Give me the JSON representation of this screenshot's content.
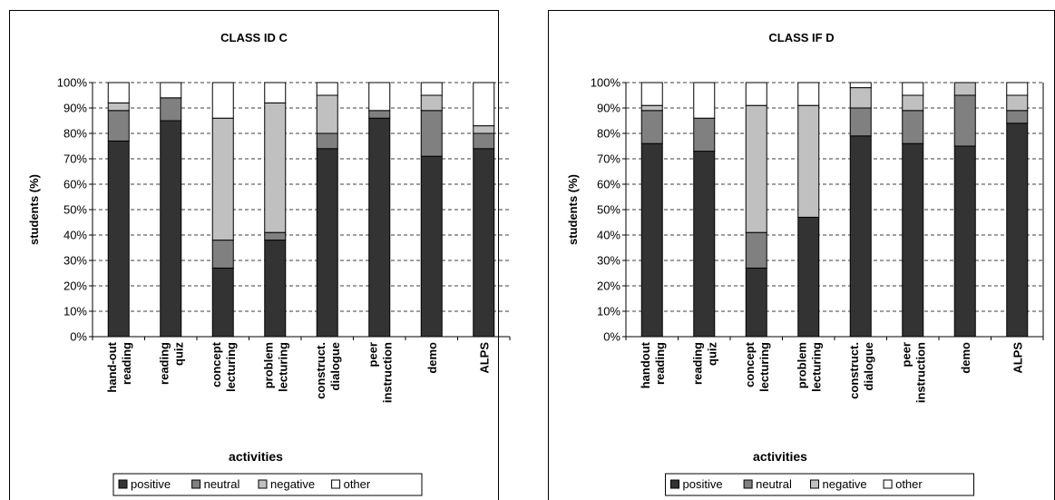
{
  "chart_data": [
    {
      "type": "bar",
      "stacked": true,
      "title": "CLASS ID C",
      "xlabel": "activities",
      "ylabel": "students (%)",
      "ylim": [
        0,
        100
      ],
      "y_ticks": [
        "0%",
        "10%",
        "20%",
        "30%",
        "40%",
        "50%",
        "60%",
        "70%",
        "80%",
        "90%",
        "100%"
      ],
      "grid": "horizontal dashed",
      "legend_position": "bottom",
      "categories": [
        [
          "hand-out",
          "reading"
        ],
        [
          "reading",
          "quiz"
        ],
        [
          "concept",
          "lecturing"
        ],
        [
          "problem",
          "lecturing"
        ],
        [
          "construct.",
          "dialogue"
        ],
        [
          "peer",
          "instruction"
        ],
        [
          "demo"
        ],
        [
          "ALPS"
        ]
      ],
      "series": [
        {
          "name": "positive",
          "color": "#333333",
          "values": [
            77,
            85,
            27,
            38,
            74,
            86,
            71,
            74
          ]
        },
        {
          "name": "neutral",
          "color": "#808080",
          "values": [
            12,
            9,
            11,
            3,
            6,
            3,
            18,
            6
          ]
        },
        {
          "name": "negative",
          "color": "#c0c0c0",
          "values": [
            3,
            0,
            48,
            51,
            15,
            0,
            6,
            3
          ]
        },
        {
          "name": "other",
          "color": "#ffffff",
          "values": [
            8,
            6,
            14,
            8,
            5,
            11,
            5,
            17
          ]
        }
      ]
    },
    {
      "type": "bar",
      "stacked": true,
      "title": "CLASS IF D",
      "xlabel": "activities",
      "ylabel": "students (%)",
      "ylim": [
        0,
        100
      ],
      "y_ticks": [
        "0%",
        "10%",
        "20%",
        "30%",
        "40%",
        "50%",
        "60%",
        "70%",
        "80%",
        "90%",
        "100%"
      ],
      "grid": "horizontal dashed",
      "legend_position": "bottom",
      "categories": [
        [
          "handout",
          "reading"
        ],
        [
          "reading",
          "quiz"
        ],
        [
          "concept",
          "lecturing"
        ],
        [
          "problem",
          "lecturing"
        ],
        [
          "construct.",
          "dialogue"
        ],
        [
          "peer",
          "instruction"
        ],
        [
          "demo"
        ],
        [
          "ALPS"
        ]
      ],
      "series": [
        {
          "name": "positive",
          "color": "#333333",
          "values": [
            76,
            73,
            27,
            47,
            79,
            76,
            75,
            84
          ]
        },
        {
          "name": "neutral",
          "color": "#808080",
          "values": [
            13,
            13,
            14,
            0,
            11,
            13,
            20,
            5
          ]
        },
        {
          "name": "negative",
          "color": "#c0c0c0",
          "values": [
            2,
            0,
            50,
            44,
            8,
            6,
            5,
            6
          ]
        },
        {
          "name": "other",
          "color": "#ffffff",
          "values": [
            9,
            14,
            9,
            9,
            2,
            5,
            0,
            5
          ]
        }
      ]
    }
  ]
}
